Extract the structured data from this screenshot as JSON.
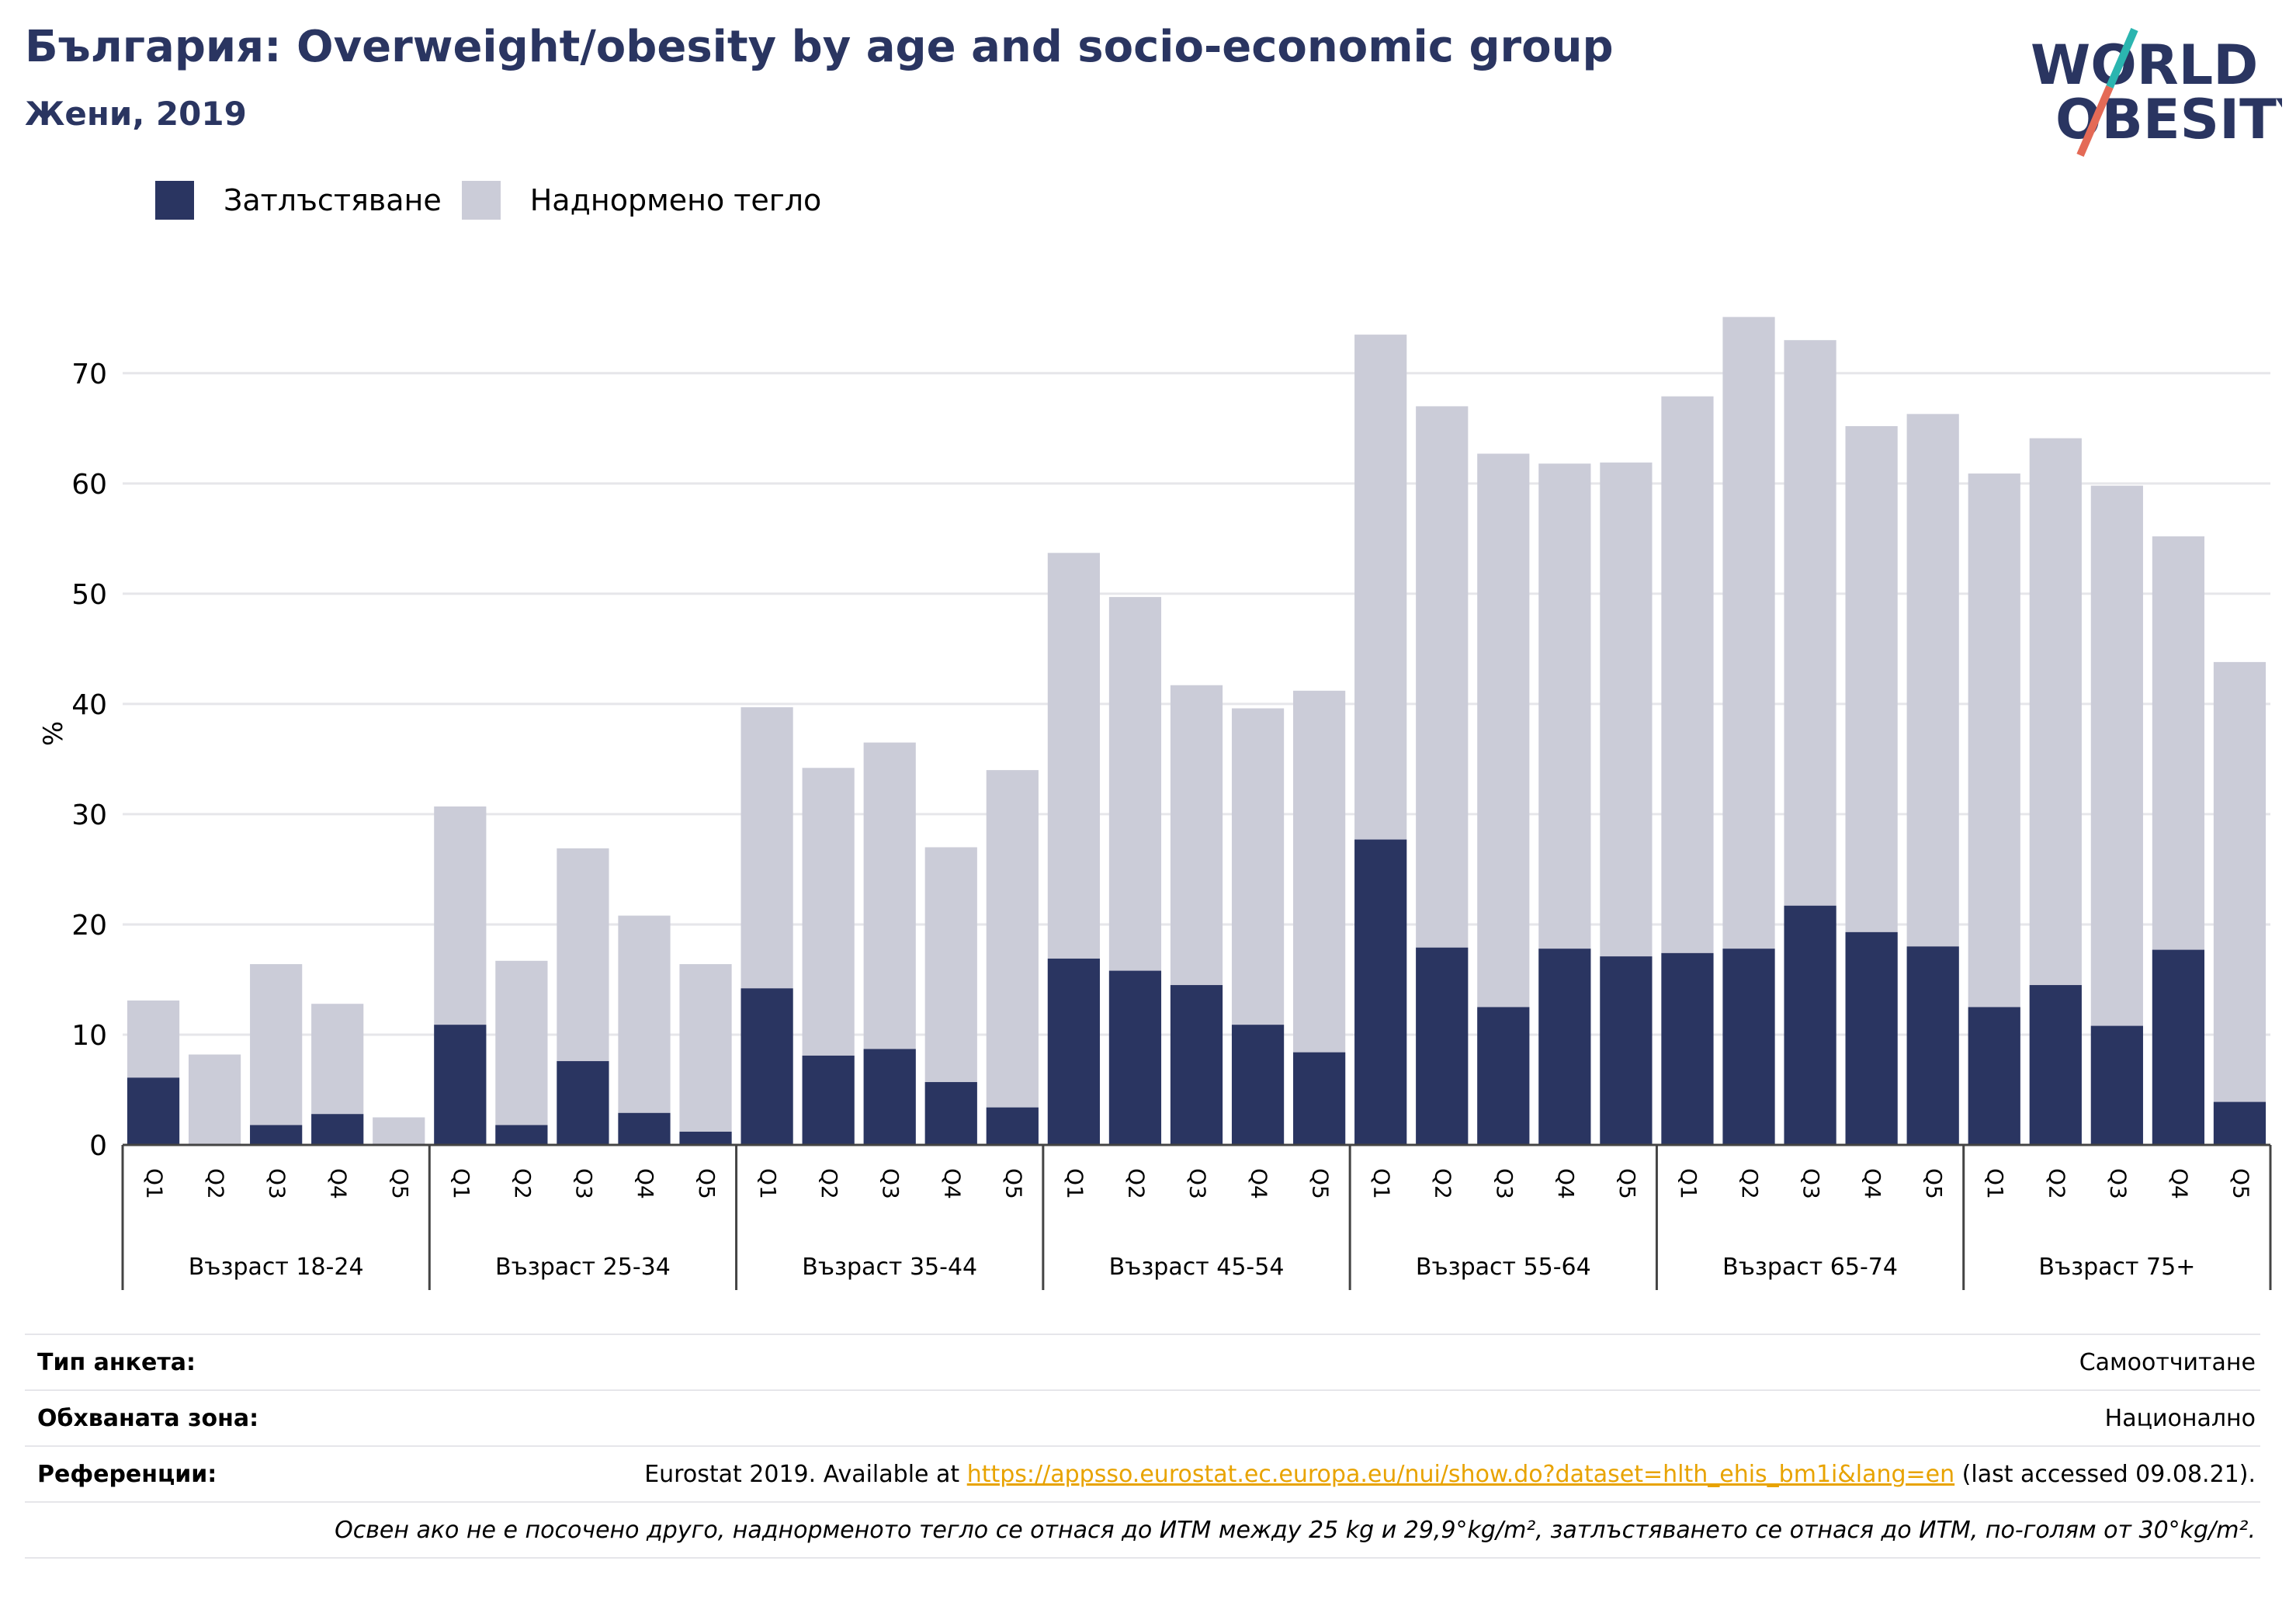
{
  "header": {
    "title": "България: Overweight/obesity by age and socio-economic group",
    "subtitle": "Жени, 2019"
  },
  "logo": {
    "line1": "WORLD",
    "line2": "OBESITY",
    "colors": {
      "text": "#2a3561",
      "slash_top": "#2bb5b0",
      "slash_bottom": "#e46a56"
    }
  },
  "colors": {
    "obesity": "#2a3561",
    "overweight": "#cbccd8",
    "grid": "#e6e6ea",
    "axis": "#444444"
  },
  "chart_data": {
    "type": "bar",
    "stacked": true,
    "ylabel": "%",
    "ylim": [
      0,
      80
    ],
    "yticks": [
      0,
      10,
      20,
      30,
      40,
      50,
      60,
      70
    ],
    "grid": true,
    "legend_position": "top-left",
    "legend": [
      "Затлъстяване",
      "Наднормено тегло"
    ],
    "groups": [
      {
        "label": "Възраст 18-24",
        "categories": [
          "Q1",
          "Q2",
          "Q3",
          "Q4",
          "Q5"
        ],
        "obesity": [
          6.1,
          0,
          1.8,
          2.8,
          0
        ],
        "total": [
          13.1,
          8.2,
          16.4,
          12.8,
          2.5
        ]
      },
      {
        "label": "Възраст 25-34",
        "categories": [
          "Q1",
          "Q2",
          "Q3",
          "Q4",
          "Q5"
        ],
        "obesity": [
          10.9,
          1.8,
          7.6,
          2.9,
          1.2
        ],
        "total": [
          30.7,
          16.7,
          26.9,
          20.8,
          16.4
        ]
      },
      {
        "label": "Възраст 35-44",
        "categories": [
          "Q1",
          "Q2",
          "Q3",
          "Q4",
          "Q5"
        ],
        "obesity": [
          14.2,
          8.1,
          8.7,
          5.7,
          3.4
        ],
        "total": [
          39.7,
          34.2,
          36.5,
          27.0,
          34.0
        ]
      },
      {
        "label": "Възраст 45-54",
        "categories": [
          "Q1",
          "Q2",
          "Q3",
          "Q4",
          "Q5"
        ],
        "obesity": [
          16.9,
          15.8,
          14.5,
          10.9,
          8.4
        ],
        "total": [
          53.7,
          49.7,
          41.7,
          39.6,
          41.2
        ]
      },
      {
        "label": "Възраст 55-64",
        "categories": [
          "Q1",
          "Q2",
          "Q3",
          "Q4",
          "Q5"
        ],
        "obesity": [
          27.7,
          17.9,
          12.5,
          17.8,
          17.1
        ],
        "total": [
          73.5,
          67.0,
          62.7,
          61.8,
          61.9
        ]
      },
      {
        "label": "Възраст 65-74",
        "categories": [
          "Q1",
          "Q2",
          "Q3",
          "Q4",
          "Q5"
        ],
        "obesity": [
          17.4,
          17.8,
          21.7,
          19.3,
          18.0
        ],
        "total": [
          67.9,
          75.1,
          73.0,
          65.2,
          66.3
        ]
      },
      {
        "label": "Възраст 75+",
        "categories": [
          "Q1",
          "Q2",
          "Q3",
          "Q4",
          "Q5"
        ],
        "obesity": [
          12.5,
          14.5,
          10.8,
          17.7,
          3.9
        ],
        "total": [
          60.9,
          64.1,
          59.8,
          55.2,
          43.8
        ]
      }
    ]
  },
  "meta": {
    "survey_type": {
      "label": "Тип анкета:",
      "value": "Самоотчитане"
    },
    "coverage": {
      "label": "Обхваната зона:",
      "value": "Национално"
    },
    "references": {
      "label": "Референции:",
      "prefix": "Eurostat 2019. Available at ",
      "link": "https://appsso.eurostat.ec.europa.eu/nui/show.do?dataset=hlth_ehis_bm1i&lang=en",
      "suffix": " (last accessed 09.08.21)."
    },
    "note": "Освен ако не е посочено друго, наднорменото тегло се отнася до ИТМ между 25 kg и 29,9°kg/m², затлъстяването се отнася до ИТМ, по-голям от 30°kg/m²."
  }
}
